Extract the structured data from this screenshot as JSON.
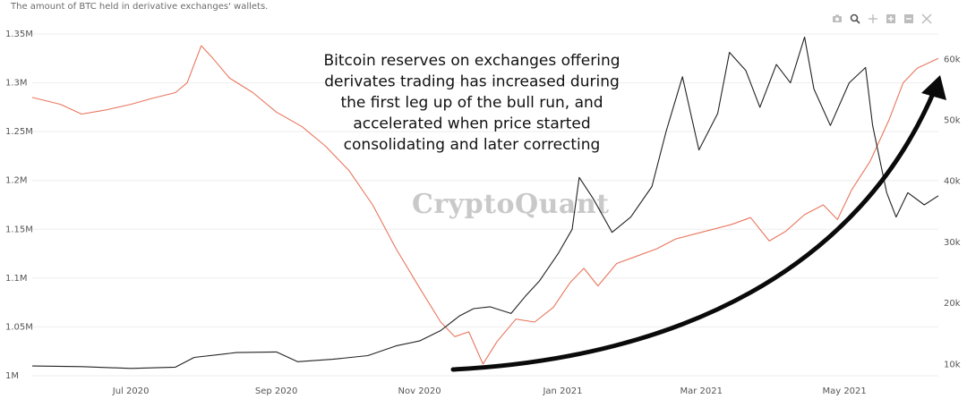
{
  "subtitle": "The amount of BTC held in derivative exchanges' wallets.",
  "toolbar": {
    "icons": [
      "camera-icon",
      "zoom-icon",
      "pan-icon",
      "zoom-in-icon",
      "zoom-out-icon",
      "autoscale-icon"
    ]
  },
  "colors": {
    "reserve": "#e8765e",
    "price": "#222222",
    "grid": "#eeeeee",
    "arrow": "#0a0a0a"
  },
  "annotation": [
    "Bitcoin reserves on exchanges offering",
    "derivates trading has increased during",
    "the first leg up of the bull run, and",
    "accelerated when price started",
    "consolidating and later correcting"
  ],
  "watermark": "CryptoQuant",
  "chart_data": {
    "type": "line",
    "x_ticks": [
      "Jul 2020",
      "Sep 2020",
      "Nov 2020",
      "Jan 2021",
      "Mar 2021",
      "May 2021"
    ],
    "y_left_ticks": [
      "1M",
      "1.05M",
      "1.1M",
      "1.15M",
      "1.2M",
      "1.25M",
      "1.3M",
      "1.35M"
    ],
    "y_right_ticks": [
      "10k",
      "20k",
      "30k",
      "40k",
      "50k",
      "60k"
    ],
    "y_left_range": [
      1000000,
      1350000
    ],
    "y_right_range": [
      8000,
      64000
    ],
    "x_range": [
      "2020-05-20",
      "2021-06-10"
    ],
    "series": [
      {
        "axis": "left",
        "color": "#e8765e",
        "points": [
          [
            "2020-05-20",
            1285000
          ],
          [
            "2020-06-01",
            1278000
          ],
          [
            "2020-06-10",
            1268000
          ],
          [
            "2020-06-20",
            1272000
          ],
          [
            "2020-07-01",
            1278000
          ],
          [
            "2020-07-10",
            1284000
          ],
          [
            "2020-07-20",
            1290000
          ],
          [
            "2020-07-25",
            1300000
          ],
          [
            "2020-07-31",
            1338000
          ],
          [
            "2020-08-05",
            1325000
          ],
          [
            "2020-08-12",
            1305000
          ],
          [
            "2020-08-22",
            1290000
          ],
          [
            "2020-09-01",
            1270000
          ],
          [
            "2020-09-12",
            1255000
          ],
          [
            "2020-09-22",
            1235000
          ],
          [
            "2020-10-02",
            1210000
          ],
          [
            "2020-10-12",
            1175000
          ],
          [
            "2020-10-22",
            1130000
          ],
          [
            "2020-11-01",
            1090000
          ],
          [
            "2020-11-10",
            1055000
          ],
          [
            "2020-11-16",
            1040000
          ],
          [
            "2020-11-22",
            1045000
          ],
          [
            "2020-11-28",
            1012000
          ],
          [
            "2020-12-04",
            1035000
          ],
          [
            "2020-12-12",
            1058000
          ],
          [
            "2020-12-20",
            1055000
          ],
          [
            "2020-12-28",
            1070000
          ],
          [
            "2021-01-04",
            1095000
          ],
          [
            "2021-01-10",
            1110000
          ],
          [
            "2021-01-16",
            1092000
          ],
          [
            "2021-01-24",
            1115000
          ],
          [
            "2021-02-01",
            1122000
          ],
          [
            "2021-02-10",
            1130000
          ],
          [
            "2021-02-18",
            1140000
          ],
          [
            "2021-02-26",
            1145000
          ],
          [
            "2021-03-06",
            1150000
          ],
          [
            "2021-03-14",
            1155000
          ],
          [
            "2021-03-22",
            1162000
          ],
          [
            "2021-03-30",
            1138000
          ],
          [
            "2021-04-06",
            1148000
          ],
          [
            "2021-04-14",
            1165000
          ],
          [
            "2021-04-22",
            1175000
          ],
          [
            "2021-04-28",
            1160000
          ],
          [
            "2021-05-04",
            1190000
          ],
          [
            "2021-05-12",
            1220000
          ],
          [
            "2021-05-20",
            1262000
          ],
          [
            "2021-05-26",
            1300000
          ],
          [
            "2021-06-01",
            1315000
          ],
          [
            "2021-06-10",
            1325000
          ]
        ]
      },
      {
        "axis": "right",
        "color": "#222222",
        "points": [
          [
            "2020-05-20",
            9600
          ],
          [
            "2020-06-10",
            9500
          ],
          [
            "2020-07-01",
            9200
          ],
          [
            "2020-07-20",
            9400
          ],
          [
            "2020-07-28",
            11000
          ],
          [
            "2020-08-15",
            11800
          ],
          [
            "2020-09-01",
            11900
          ],
          [
            "2020-09-10",
            10300
          ],
          [
            "2020-09-25",
            10700
          ],
          [
            "2020-10-10",
            11300
          ],
          [
            "2020-10-22",
            12900
          ],
          [
            "2020-11-01",
            13700
          ],
          [
            "2020-11-10",
            15400
          ],
          [
            "2020-11-18",
            17800
          ],
          [
            "2020-11-24",
            19000
          ],
          [
            "2020-12-01",
            19300
          ],
          [
            "2020-12-10",
            18200
          ],
          [
            "2020-12-16",
            21000
          ],
          [
            "2020-12-22",
            23500
          ],
          [
            "2020-12-30",
            28000
          ],
          [
            "2021-01-05",
            32000
          ],
          [
            "2021-01-08",
            40500
          ],
          [
            "2021-01-14",
            37000
          ],
          [
            "2021-01-22",
            31500
          ],
          [
            "2021-01-30",
            34000
          ],
          [
            "2021-02-08",
            39000
          ],
          [
            "2021-02-14",
            48000
          ],
          [
            "2021-02-21",
            57000
          ],
          [
            "2021-02-28",
            45000
          ],
          [
            "2021-03-08",
            51000
          ],
          [
            "2021-03-13",
            61000
          ],
          [
            "2021-03-20",
            58000
          ],
          [
            "2021-03-26",
            52000
          ],
          [
            "2021-04-02",
            59000
          ],
          [
            "2021-04-08",
            56000
          ],
          [
            "2021-04-14",
            63500
          ],
          [
            "2021-04-18",
            55000
          ],
          [
            "2021-04-25",
            49000
          ],
          [
            "2021-05-03",
            56000
          ],
          [
            "2021-05-10",
            58500
          ],
          [
            "2021-05-13",
            49000
          ],
          [
            "2021-05-19",
            38000
          ],
          [
            "2021-05-23",
            34000
          ],
          [
            "2021-05-28",
            38000
          ],
          [
            "2021-06-04",
            36000
          ],
          [
            "2021-06-10",
            37500
          ]
        ]
      }
    ],
    "legend": "none",
    "grid": true
  }
}
